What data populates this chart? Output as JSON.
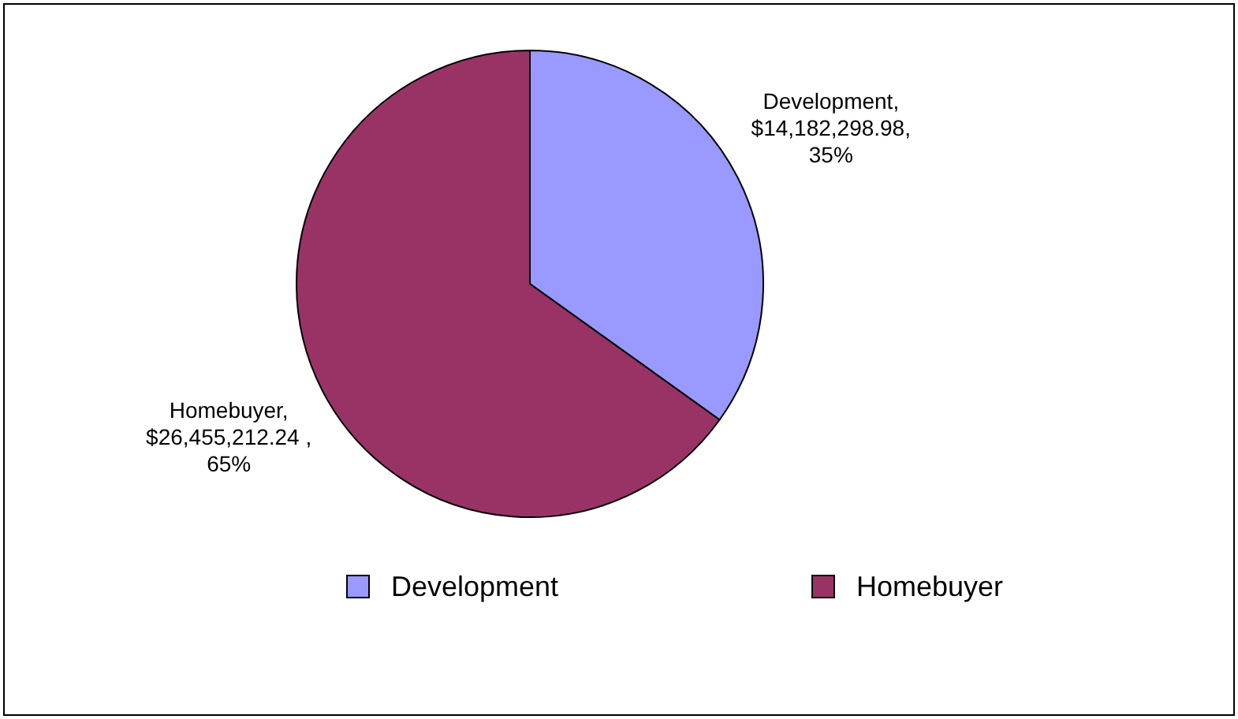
{
  "chart_data": {
    "type": "pie",
    "categories": [
      "Development",
      "Homebuyer"
    ],
    "values": [
      14182298.98,
      26455212.24
    ],
    "colors": [
      "#9999ff",
      "#993366"
    ],
    "value_labels": [
      "Development,\n$14,182,298.98,\n35%",
      "Homebuyer,\n$26,455,212.24 ,\n65%"
    ],
    "legend": "bottom"
  }
}
